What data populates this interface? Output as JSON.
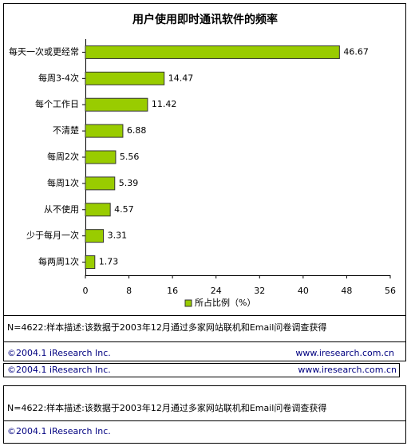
{
  "chart_data": {
    "type": "hbar",
    "title": "用户使用即时通讯软件的频率",
    "categories": [
      "每天一次或更经常",
      "每周3-4次",
      "每个工作日",
      "不清楚",
      "每周2次",
      "每周1次",
      "从不使用",
      "少于每月一次",
      "每两周1次"
    ],
    "series": [
      {
        "name": "所占比例（%）",
        "color": "#99cc00",
        "values": [
          46.67,
          14.47,
          11.42,
          6.88,
          5.56,
          5.39,
          4.57,
          3.31,
          1.73
        ]
      }
    ],
    "xlim": [
      0,
      56
    ],
    "xticks": [
      0,
      8,
      16,
      24,
      32,
      40,
      48,
      56
    ]
  },
  "footer": {
    "note": "N=4622:样本描述:该数据于2003年12月通过多家网站联机和Email问卷调查获得",
    "copyright": "©2004.1  iResearch Inc.",
    "website": "www.iresearch.com.cn"
  }
}
